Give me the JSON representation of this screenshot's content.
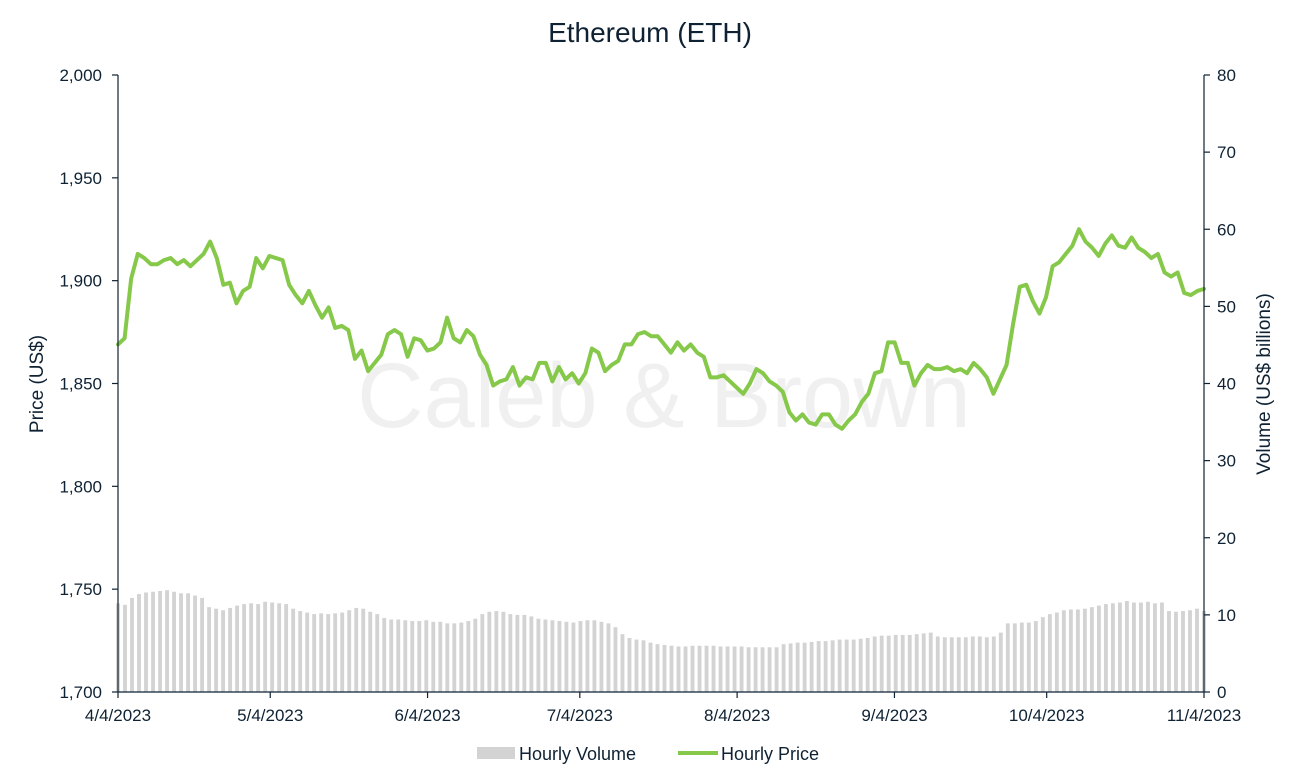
{
  "colors": {
    "price": "#86c94a",
    "volume": "#d3d3d3",
    "axis": "#0f2233",
    "text": "#0f2233",
    "watermark": "#f0f0f0"
  },
  "watermark": "Caleb & Brown",
  "chart_data": {
    "type": "bar+line",
    "title": "Ethereum (ETH)",
    "ylabel": "Price (US$)",
    "y2label": "Volume (US$ billions)",
    "x_ticks": [
      "4/4/2023",
      "5/4/2023",
      "6/4/2023",
      "7/4/2023",
      "8/4/2023",
      "9/4/2023",
      "10/4/2023",
      "11/4/2023"
    ],
    "x_range": [
      "4/4/2023",
      "11/4/2023"
    ],
    "ylim": [
      1700,
      2000
    ],
    "y_ticks": [
      "1,700",
      "1,750",
      "1,800",
      "1,850",
      "1,900",
      "1,950",
      "2,000"
    ],
    "y2lim": [
      0,
      80
    ],
    "y2_ticks": [
      "0",
      "10",
      "20",
      "30",
      "40",
      "50",
      "60",
      "70",
      "80"
    ],
    "legend": {
      "placement": "bottom-center",
      "entries": [
        "Hourly Volume",
        "Hourly Price"
      ]
    },
    "series": [
      {
        "name": "Hourly Volume",
        "kind": "bar",
        "axis": "right",
        "x_start": "4/4/2023",
        "x_end": "11/4/2023",
        "values": [
          11.5,
          11.3,
          12.2,
          12.7,
          12.9,
          13.0,
          13.1,
          13.2,
          13.0,
          12.8,
          12.8,
          12.5,
          12.2,
          11.0,
          10.8,
          10.6,
          10.9,
          11.2,
          11.4,
          11.5,
          11.4,
          11.7,
          11.6,
          11.5,
          11.4,
          10.8,
          10.5,
          10.3,
          10.1,
          10.2,
          10.1,
          10.2,
          10.3,
          10.6,
          10.9,
          10.8,
          10.4,
          10.1,
          9.6,
          9.4,
          9.4,
          9.3,
          9.2,
          9.2,
          9.3,
          9.1,
          9.1,
          8.9,
          8.9,
          9.0,
          9.2,
          9.5,
          10.1,
          10.4,
          10.5,
          10.4,
          10.1,
          10.0,
          10.0,
          9.8,
          9.5,
          9.4,
          9.3,
          9.2,
          9.1,
          9.0,
          9.2,
          9.3,
          9.3,
          9.1,
          8.9,
          8.4,
          7.5,
          7.0,
          6.8,
          6.7,
          6.4,
          6.2,
          6.1,
          6.0,
          5.9,
          5.9,
          6.0,
          6.0,
          6.0,
          6.0,
          5.9,
          5.9,
          5.9,
          5.9,
          5.8,
          5.8,
          5.8,
          5.8,
          5.8,
          6.2,
          6.3,
          6.4,
          6.4,
          6.5,
          6.6,
          6.6,
          6.7,
          6.8,
          6.8,
          6.8,
          6.9,
          7.0,
          7.2,
          7.3,
          7.3,
          7.4,
          7.4,
          7.4,
          7.5,
          7.6,
          7.7,
          7.2,
          7.1,
          7.1,
          7.1,
          7.1,
          7.2,
          7.2,
          7.1,
          7.2,
          7.7,
          8.9,
          8.9,
          9.0,
          9.0,
          9.2,
          9.7,
          10.1,
          10.3,
          10.6,
          10.7,
          10.7,
          10.8,
          11.0,
          11.2,
          11.4,
          11.5,
          11.6,
          11.8,
          11.6,
          11.6,
          11.7,
          11.5,
          11.6,
          10.5,
          10.4,
          10.5,
          10.6,
          10.8,
          10.5
        ]
      },
      {
        "name": "Hourly Price",
        "kind": "line",
        "axis": "left",
        "x_start": "4/4/2023",
        "x_end": "11/4/2023",
        "values": [
          1869,
          1872,
          1901,
          1913,
          1911,
          1908,
          1908,
          1910,
          1911,
          1908,
          1910,
          1907,
          1910,
          1913,
          1919,
          1911,
          1898,
          1899,
          1889,
          1895,
          1897,
          1911,
          1906,
          1912,
          1911,
          1910,
          1898,
          1893,
          1889,
          1895,
          1888,
          1882,
          1887,
          1877,
          1878,
          1876,
          1862,
          1866,
          1856,
          1860,
          1864,
          1874,
          1876,
          1874,
          1863,
          1872,
          1871,
          1866,
          1867,
          1870,
          1882,
          1872,
          1870,
          1876,
          1873,
          1864,
          1859,
          1849,
          1851,
          1852,
          1858,
          1849,
          1853,
          1852,
          1860,
          1860,
          1851,
          1858,
          1852,
          1855,
          1850,
          1855,
          1867,
          1865,
          1856,
          1859,
          1861,
          1869,
          1869,
          1874,
          1875,
          1873,
          1873,
          1869,
          1865,
          1870,
          1866,
          1869,
          1865,
          1863,
          1853,
          1853,
          1854,
          1851,
          1848,
          1845,
          1850,
          1857,
          1855,
          1851,
          1849,
          1846,
          1836,
          1832,
          1835,
          1831,
          1830,
          1835,
          1835,
          1830,
          1828,
          1832,
          1835,
          1841,
          1845,
          1855,
          1856,
          1870,
          1870,
          1860,
          1860,
          1849,
          1855,
          1859,
          1857,
          1857,
          1858,
          1856,
          1857,
          1855,
          1860,
          1857,
          1853,
          1845,
          1852,
          1859,
          1879,
          1897,
          1898,
          1890,
          1884,
          1892,
          1907,
          1909,
          1913,
          1917,
          1925,
          1919,
          1916,
          1912,
          1918,
          1922,
          1917,
          1916,
          1921,
          1916,
          1914,
          1911,
          1913,
          1904,
          1902,
          1904,
          1894,
          1893,
          1895,
          1896
        ]
      }
    ]
  }
}
